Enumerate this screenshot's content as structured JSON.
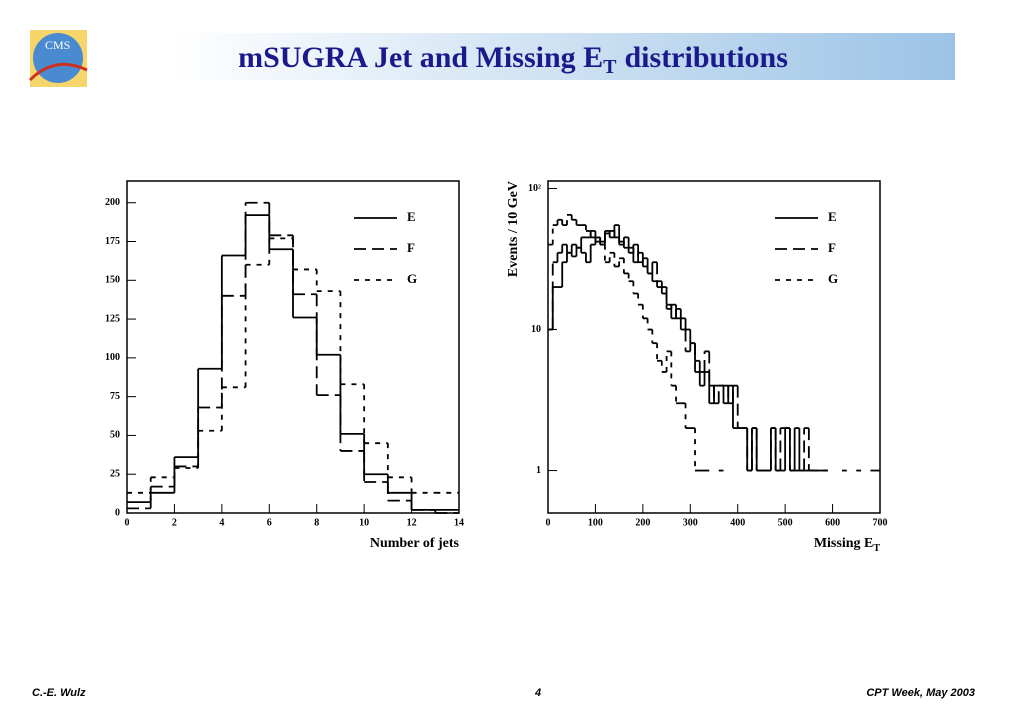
{
  "slide": {
    "title": "mSUGRA Jet and Missing E",
    "title_subscript": "T",
    "title_end": "distributions",
    "footer_left": "C.-E. Wulz",
    "footer_center": "4",
    "footer_right": "CPT Week, May 2003",
    "logo": "CMS"
  },
  "chart_data": [
    {
      "type": "histogram",
      "xlabel": "Number of jets",
      "xlim": [
        0,
        14
      ],
      "xticks": [
        0,
        2,
        4,
        6,
        8,
        10,
        12,
        14
      ],
      "ylim": [
        0,
        214
      ],
      "yticks": [
        0,
        25,
        50,
        75,
        100,
        125,
        150,
        175,
        200
      ],
      "legend": "upper right",
      "bins": [
        0,
        1,
        2,
        3,
        4,
        5,
        6,
        7,
        8,
        9,
        10,
        11,
        12,
        13,
        14
      ],
      "series": [
        {
          "name": "E",
          "color": "#000000",
          "dash": "solid",
          "values": [
            7,
            13,
            36,
            93,
            166,
            192,
            170,
            126,
            102,
            51,
            25,
            13,
            2,
            2
          ]
        },
        {
          "name": "F",
          "color": "#000000",
          "dash": "12,6",
          "values": [
            3,
            17,
            30,
            68,
            140,
            200,
            179,
            141,
            76,
            40,
            20,
            8,
            2,
            0
          ]
        },
        {
          "name": "G",
          "color": "#000000",
          "dash": "5,6",
          "values": [
            13,
            23,
            29,
            53,
            81,
            160,
            177,
            157,
            143,
            83,
            45,
            23,
            13,
            13
          ]
        }
      ]
    },
    {
      "type": "histogram",
      "xlabel": "Missing E",
      "xlabel_subscript": "T",
      "ylabel": "Events / 10 GeV",
      "log_y": true,
      "xlim": [
        0,
        700
      ],
      "xticks": [
        0,
        100,
        200,
        300,
        400,
        500,
        600,
        700
      ],
      "ylim": [
        0.5,
        113
      ],
      "yticks": [
        1,
        10,
        {
          "value": 100,
          "label": "10²"
        }
      ],
      "legend": "upper right",
      "bins": [
        0,
        10,
        20,
        30,
        40,
        50,
        60,
        70,
        80,
        90,
        100,
        110,
        120,
        130,
        140,
        150,
        160,
        170,
        180,
        190,
        200,
        210,
        220,
        230,
        240,
        250,
        260,
        270,
        280,
        290,
        300,
        310,
        320,
        330,
        340,
        350,
        360,
        370,
        380,
        390,
        400,
        410,
        420,
        430,
        440,
        450,
        460,
        470,
        480,
        490,
        500,
        510,
        520,
        530,
        540,
        550,
        560,
        570,
        580,
        590,
        600,
        610,
        620,
        630,
        640,
        650,
        660,
        670,
        680,
        690,
        700
      ],
      "series": [
        {
          "name": "E",
          "color": "#000000",
          "dash": "solid",
          "values": [
            10,
            20,
            20,
            30,
            35,
            33,
            38,
            35,
            30,
            40,
            45,
            40,
            50,
            45,
            55,
            40,
            45,
            38,
            30,
            35,
            28,
            25,
            22,
            20,
            18,
            15,
            12,
            14,
            12,
            10,
            8,
            6,
            4,
            5,
            3,
            4,
            4,
            3,
            4,
            2,
            2,
            2,
            1,
            2,
            1,
            1,
            1,
            2,
            1,
            1,
            2,
            1,
            2,
            1,
            1,
            1,
            1,
            null,
            1,
            null,
            null,
            null,
            null,
            null,
            null,
            null,
            null,
            null,
            null,
            null
          ]
        },
        {
          "name": "F",
          "color": "#000000",
          "dash": "12,6",
          "values": [
            10,
            30,
            35,
            40,
            35,
            40,
            38,
            45,
            45,
            50,
            45,
            42,
            48,
            50,
            45,
            42,
            38,
            35,
            40,
            30,
            32,
            25,
            30,
            22,
            20,
            14,
            15,
            12,
            10,
            7,
            8,
            5,
            5,
            7,
            4,
            3,
            4,
            4,
            3,
            4,
            2,
            2,
            1,
            2,
            1,
            1,
            1,
            2,
            1,
            2,
            2,
            1,
            1,
            1,
            2,
            1,
            1,
            1,
            1,
            null,
            null,
            null,
            1,
            null,
            null,
            1,
            null,
            null,
            1,
            1
          ]
        },
        {
          "name": "G",
          "color": "#000000",
          "dash": "5,6",
          "values": [
            40,
            55,
            60,
            55,
            65,
            60,
            55,
            55,
            50,
            45,
            42,
            40,
            30,
            35,
            28,
            32,
            25,
            22,
            18,
            15,
            12,
            10,
            8,
            6,
            5,
            7,
            4,
            3,
            3,
            2,
            2,
            1,
            1,
            1,
            null,
            null,
            1,
            null,
            null,
            null,
            null,
            null,
            null,
            null,
            null,
            null,
            null,
            null,
            null,
            null,
            null,
            null,
            null,
            null,
            null,
            null,
            null,
            null,
            null,
            null,
            null,
            null,
            null,
            null,
            null,
            null,
            null,
            null,
            null,
            null
          ]
        }
      ]
    }
  ]
}
